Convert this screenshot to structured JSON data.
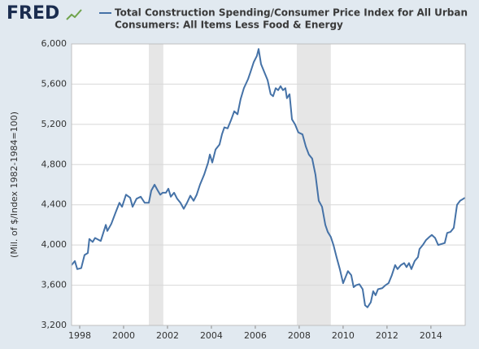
{
  "logo": "FRED",
  "chart_data": {
    "type": "line",
    "title_lines": [
      "Total Construction Spending/Consumer Price Index for All Urban",
      "Consumers: All Items Less Food & Energy"
    ],
    "ylabel": "(Mil. of $/Index 1982-1984=100)",
    "xlim": [
      1997.63,
      2015.56
    ],
    "xticks": [
      1998,
      2000,
      2002,
      2004,
      2006,
      2008,
      2010,
      2012,
      2014
    ],
    "ylim": [
      3200,
      6000
    ],
    "yticks": [
      {
        "value": 3200,
        "label": "3,200"
      },
      {
        "value": 3600,
        "label": "3,600"
      },
      {
        "value": 4000,
        "label": "4,000"
      },
      {
        "value": 4400,
        "label": "4,400"
      },
      {
        "value": 4800,
        "label": "4,800"
      },
      {
        "value": 5200,
        "label": "5,200"
      },
      {
        "value": 5600,
        "label": "5,600"
      },
      {
        "value": 6000,
        "label": "6,000"
      }
    ],
    "grid": true,
    "recessions": [
      [
        2001.15,
        2001.81
      ],
      [
        2007.89,
        2009.44
      ]
    ],
    "recession_color": "#e6e6e6",
    "series": [
      {
        "name": "Total Construction Spending/Consumer Price Index for All Urban Consumers: All Items Less Food & Energy",
        "color": "#4572a7",
        "x": [
          1997.63,
          1997.78,
          1997.89,
          1998.07,
          1998.22,
          1998.37,
          1998.44,
          1998.59,
          1998.7,
          1998.96,
          1999.19,
          1999.26,
          1999.44,
          1999.63,
          1999.81,
          1999.93,
          2000.11,
          2000.3,
          2000.41,
          2000.59,
          2000.78,
          2000.96,
          2001.15,
          2001.26,
          2001.41,
          2001.56,
          2001.67,
          2001.78,
          2001.93,
          2002.04,
          2002.15,
          2002.3,
          2002.44,
          2002.59,
          2002.74,
          2002.89,
          2003.04,
          2003.19,
          2003.33,
          2003.48,
          2003.67,
          2003.85,
          2003.93,
          2004.04,
          2004.19,
          2004.37,
          2004.48,
          2004.59,
          2004.74,
          2004.89,
          2005.04,
          2005.19,
          2005.33,
          2005.48,
          2005.67,
          2005.78,
          2005.93,
          2006.07,
          2006.15,
          2006.26,
          2006.41,
          2006.56,
          2006.7,
          2006.81,
          2006.93,
          2007.04,
          2007.15,
          2007.26,
          2007.37,
          2007.44,
          2007.56,
          2007.67,
          2007.81,
          2007.96,
          2008.15,
          2008.3,
          2008.44,
          2008.59,
          2008.74,
          2008.89,
          2009.04,
          2009.19,
          2009.3,
          2009.44,
          2009.56,
          2009.7,
          2009.85,
          2010.0,
          2010.11,
          2010.22,
          2010.37,
          2010.48,
          2010.59,
          2010.74,
          2010.89,
          2011.0,
          2011.11,
          2011.26,
          2011.37,
          2011.48,
          2011.59,
          2011.78,
          2011.93,
          2012.07,
          2012.22,
          2012.37,
          2012.48,
          2012.63,
          2012.78,
          2012.89,
          2013.0,
          2013.11,
          2013.26,
          2013.41,
          2013.48,
          2013.63,
          2013.78,
          2013.93,
          2014.04,
          2014.19,
          2014.33,
          2014.48,
          2014.63,
          2014.74,
          2014.89,
          2015.04,
          2015.19,
          2015.33,
          2015.48,
          2015.56
        ],
        "values": [
          3800,
          3840,
          3760,
          3770,
          3900,
          3920,
          4060,
          4030,
          4070,
          4040,
          4200,
          4140,
          4210,
          4320,
          4420,
          4380,
          4500,
          4470,
          4380,
          4460,
          4480,
          4420,
          4420,
          4540,
          4600,
          4540,
          4500,
          4520,
          4520,
          4560,
          4480,
          4520,
          4460,
          4420,
          4360,
          4420,
          4490,
          4440,
          4500,
          4600,
          4700,
          4820,
          4900,
          4820,
          4950,
          5000,
          5100,
          5170,
          5160,
          5240,
          5330,
          5300,
          5450,
          5560,
          5650,
          5720,
          5820,
          5880,
          5950,
          5800,
          5720,
          5640,
          5500,
          5480,
          5560,
          5540,
          5580,
          5540,
          5560,
          5460,
          5500,
          5250,
          5200,
          5120,
          5100,
          4980,
          4900,
          4860,
          4700,
          4440,
          4380,
          4200,
          4130,
          4080,
          4000,
          3880,
          3760,
          3620,
          3680,
          3740,
          3700,
          3580,
          3600,
          3610,
          3560,
          3400,
          3380,
          3430,
          3540,
          3500,
          3560,
          3570,
          3600,
          3620,
          3700,
          3800,
          3760,
          3800,
          3820,
          3780,
          3820,
          3760,
          3840,
          3880,
          3960,
          4000,
          4050,
          4080,
          4100,
          4070,
          4000,
          4010,
          4020,
          4120,
          4130,
          4170,
          4400,
          4440,
          4460,
          4470
        ]
      }
    ]
  }
}
